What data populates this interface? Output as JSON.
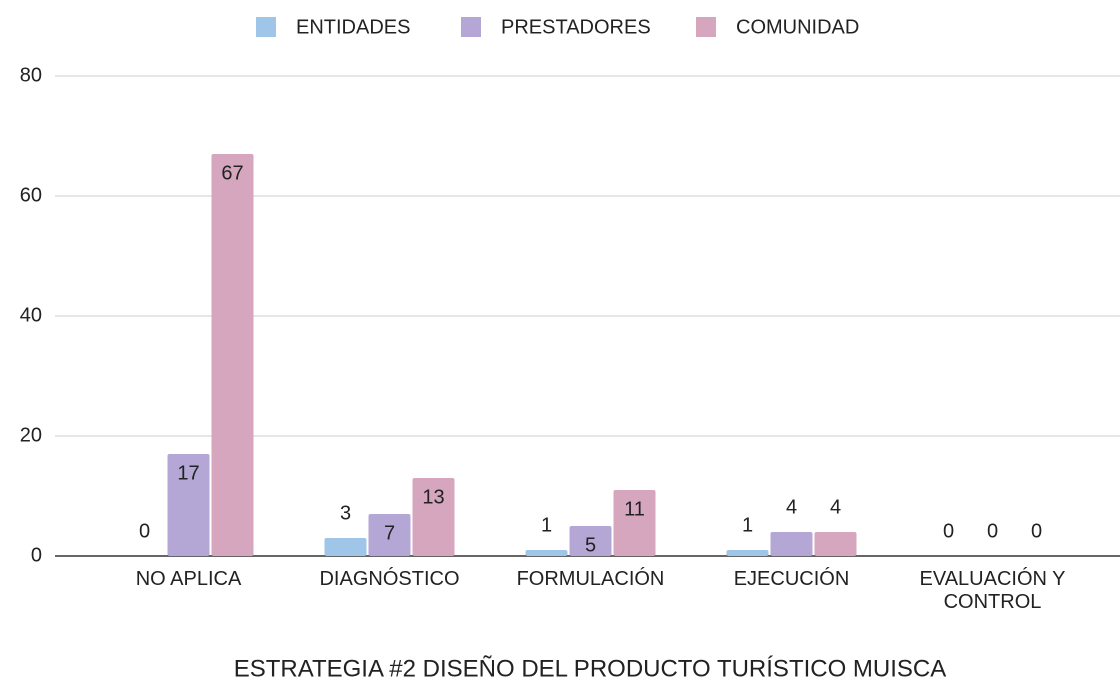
{
  "chart_data": {
    "type": "bar",
    "x_label": "ESTRATEGIA #2 DISEÑO DEL PRODUCTO TURÍSTICO MUISCA",
    "categories": [
      "NO APLICA",
      "DIAGNÓSTICO",
      "FORMULACIÓN",
      "EJECUCIÓN",
      "EVALUACIÓN Y CONTROL"
    ],
    "series": [
      {
        "name": "ENTIDADES",
        "color": "#9fc5e8",
        "values": [
          0,
          3,
          1,
          1,
          0
        ]
      },
      {
        "name": "PRESTADORES",
        "color": "#b4a7d6",
        "values": [
          17,
          7,
          5,
          4,
          0
        ]
      },
      {
        "name": "COMUNIDAD",
        "color": "#d5a6bd",
        "values": [
          67,
          13,
          11,
          4,
          0
        ]
      }
    ],
    "ylim": [
      0,
      80
    ],
    "yticks": [
      0,
      20,
      40,
      60,
      80
    ],
    "grid": true,
    "legend": "top"
  }
}
